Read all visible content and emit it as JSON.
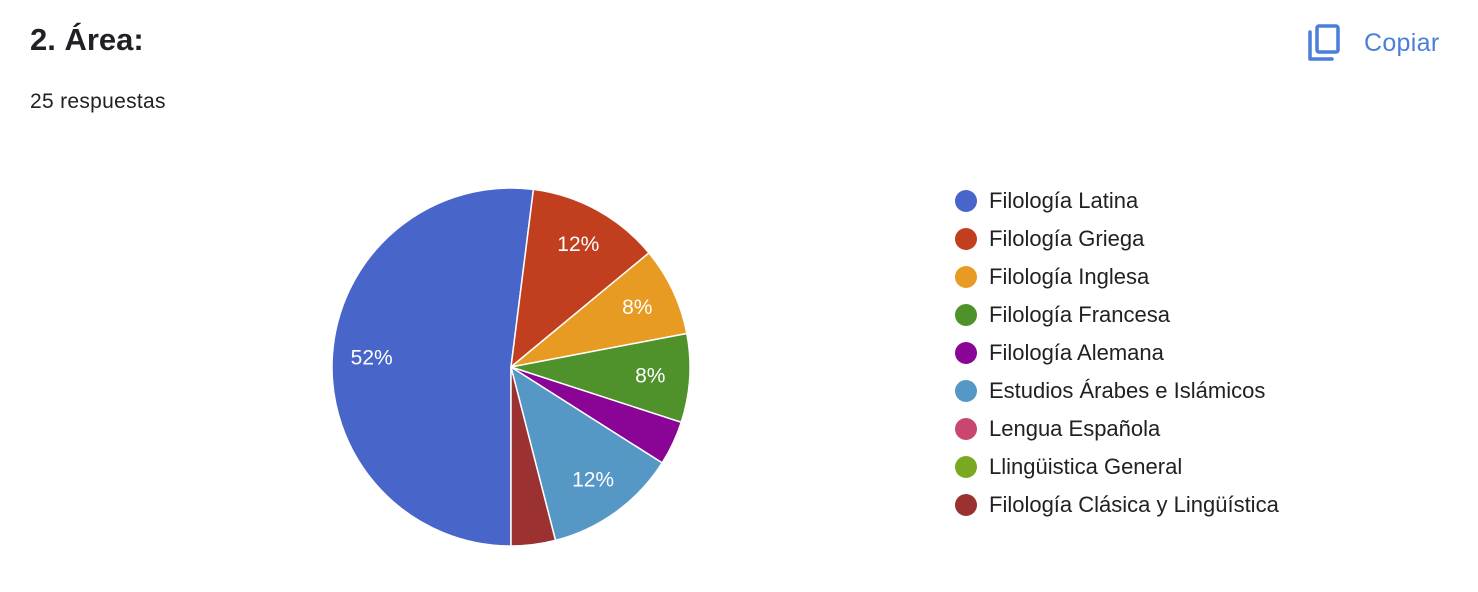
{
  "header": {
    "title": "2. Área:",
    "responses": "25 respuestas",
    "copy_label": "Copiar",
    "copy_icon": "copy-icon",
    "accent_color": "#4a7ed9"
  },
  "chart_data": {
    "type": "pie",
    "title": "2. Área:",
    "total_responses": 25,
    "legend_position": "right",
    "slices": [
      {
        "label": "Filología Latina",
        "value": 52,
        "display": "52%",
        "color": "#4866c9"
      },
      {
        "label": "Filología Griega",
        "value": 12,
        "display": "12%",
        "color": "#c13e1e"
      },
      {
        "label": "Filología Inglesa",
        "value": 8,
        "display": "8%",
        "color": "#e89b23"
      },
      {
        "label": "Filología Francesa",
        "value": 8,
        "display": "8%",
        "color": "#4f922b"
      },
      {
        "label": "Filología Alemana",
        "value": 4,
        "display": "",
        "color": "#8a0496"
      },
      {
        "label": "Estudios Árabes e Islámicos",
        "value": 12,
        "display": "12%",
        "color": "#5598c6"
      },
      {
        "label": "Lengua Española",
        "value": 0,
        "display": "",
        "color": "#c9476f"
      },
      {
        "label": "Llingüistica General",
        "value": 0,
        "display": "",
        "color": "#7aa823"
      },
      {
        "label": "Filología Clásica y Lingüística",
        "value": 4,
        "display": "",
        "color": "#9c3131"
      }
    ]
  }
}
